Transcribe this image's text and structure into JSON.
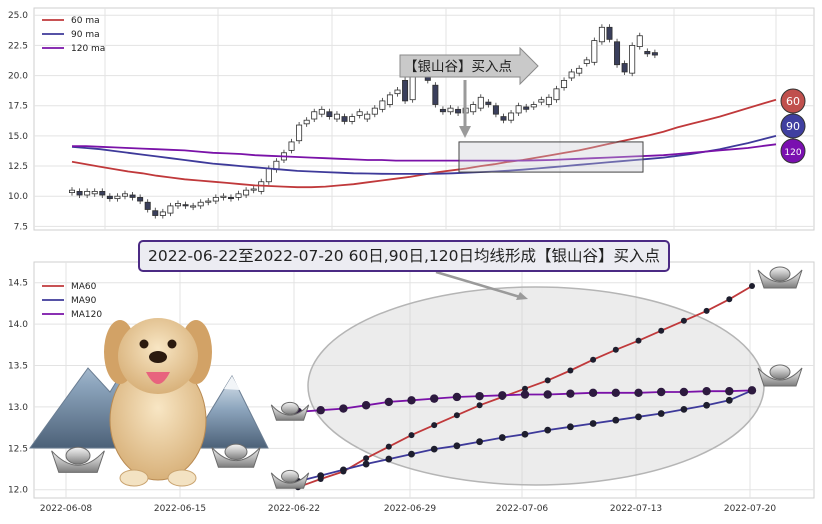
{
  "title": "2022-06-22至2022-07-20 60日,90日,120日均线形成【银山谷】买入点",
  "colors": {
    "ma60": "#c0393b",
    "ma90": "#3e3a9a",
    "ma120": "#7a12a8",
    "candle_up_fill": "#ffffff",
    "candle_down_fill": "#3a3f5c",
    "badge60": "#c0504d",
    "badge90": "#3f3fa0",
    "badge120": "#7a10b0"
  },
  "top_panel": {
    "legend": [
      "60 ma",
      "90 ma",
      "120 ma"
    ],
    "arrow_label": "【银山谷】买入点",
    "badges": [
      "60",
      "90",
      "120"
    ],
    "yticks": [
      "7.5",
      "10.0",
      "12.5",
      "15.0",
      "17.5",
      "20.0",
      "22.5",
      "25.0"
    ]
  },
  "bottom_panel": {
    "legend": [
      "MA60",
      "MA90",
      "MA120"
    ],
    "xticks": [
      "2022-06-08",
      "2022-06-15",
      "2022-06-22",
      "2022-06-29",
      "2022-07-06",
      "2022-07-13",
      "2022-07-20"
    ],
    "yticks": [
      "12.0",
      "12.5",
      "13.0",
      "13.5",
      "14.0",
      "14.5"
    ]
  },
  "chart_data": [
    {
      "type": "candlestick",
      "ylim": [
        7.2,
        25.6
      ],
      "series_ma": [
        {
          "name": "60 ma",
          "values": [
            12.85,
            12.65,
            12.45,
            12.25,
            12.05,
            11.9,
            11.7,
            11.55,
            11.4,
            11.3,
            11.2,
            11.1,
            11.0,
            10.9,
            10.85,
            10.8,
            10.75,
            10.75,
            10.8,
            10.9,
            11.0,
            11.15,
            11.3,
            11.45,
            11.6,
            11.8,
            12.0,
            12.15,
            12.3,
            12.5,
            12.65,
            12.85,
            13.0,
            13.2,
            13.4,
            13.6,
            13.8,
            14.05,
            14.3,
            14.55,
            14.8,
            15.05,
            15.35,
            15.7,
            16.0,
            16.3,
            16.6,
            16.95,
            17.3,
            17.65,
            18.0
          ]
        },
        {
          "name": "90 ma",
          "values": [
            14.1,
            14.0,
            13.9,
            13.75,
            13.6,
            13.45,
            13.3,
            13.15,
            13.0,
            12.85,
            12.7,
            12.6,
            12.5,
            12.4,
            12.3,
            12.2,
            12.1,
            12.05,
            12.0,
            11.95,
            11.9,
            11.88,
            11.86,
            11.85,
            11.85,
            11.85,
            11.87,
            11.9,
            11.95,
            12.0,
            12.05,
            12.12,
            12.2,
            12.3,
            12.4,
            12.5,
            12.6,
            12.7,
            12.8,
            12.9,
            13.0,
            13.1,
            13.2,
            13.35,
            13.5,
            13.7,
            13.9,
            14.15,
            14.4,
            14.7,
            15.0
          ]
        },
        {
          "name": "120 ma",
          "values": [
            14.15,
            14.15,
            14.1,
            14.05,
            14.0,
            13.95,
            13.9,
            13.85,
            13.8,
            13.7,
            13.6,
            13.55,
            13.5,
            13.4,
            13.35,
            13.3,
            13.25,
            13.2,
            13.15,
            13.1,
            13.05,
            13.0,
            13.0,
            12.95,
            12.95,
            12.95,
            12.95,
            12.95,
            12.95,
            12.95,
            12.95,
            12.95,
            12.95,
            12.98,
            13.0,
            13.05,
            13.1,
            13.15,
            13.2,
            13.25,
            13.3,
            13.35,
            13.4,
            13.5,
            13.6,
            13.7,
            13.8,
            13.9,
            14.0,
            14.15,
            14.3
          ]
        }
      ],
      "candles": [
        {
          "o": 10.3,
          "c": 10.5
        },
        {
          "o": 10.4,
          "c": 10.1
        },
        {
          "o": 10.1,
          "c": 10.4
        },
        {
          "o": 10.2,
          "c": 10.4
        },
        {
          "o": 10.4,
          "c": 10.1
        },
        {
          "o": 10.0,
          "c": 9.8
        },
        {
          "o": 9.8,
          "c": 10.0
        },
        {
          "o": 10.0,
          "c": 10.2
        },
        {
          "o": 10.1,
          "c": 9.9
        },
        {
          "o": 9.9,
          "c": 9.6
        },
        {
          "o": 9.5,
          "c": 8.9
        },
        {
          "o": 8.8,
          "c": 8.4
        },
        {
          "o": 8.4,
          "c": 8.7
        },
        {
          "o": 8.6,
          "c": 9.2
        },
        {
          "o": 9.2,
          "c": 9.4
        },
        {
          "o": 9.3,
          "c": 9.2
        },
        {
          "o": 9.1,
          "c": 9.2
        },
        {
          "o": 9.2,
          "c": 9.5
        },
        {
          "o": 9.5,
          "c": 9.6
        },
        {
          "o": 9.6,
          "c": 9.9
        },
        {
          "o": 9.9,
          "c": 10.0
        },
        {
          "o": 9.9,
          "c": 9.8
        },
        {
          "o": 9.9,
          "c": 10.2
        },
        {
          "o": 10.1,
          "c": 10.5
        },
        {
          "o": 10.5,
          "c": 10.6
        },
        {
          "o": 10.4,
          "c": 11.2
        },
        {
          "o": 11.2,
          "c": 12.3
        },
        {
          "o": 12.2,
          "c": 12.9
        },
        {
          "o": 13.0,
          "c": 13.6
        },
        {
          "o": 13.8,
          "c": 14.5
        },
        {
          "o": 14.6,
          "c": 15.9
        },
        {
          "o": 16.0,
          "c": 16.3
        },
        {
          "o": 16.4,
          "c": 17.0
        },
        {
          "o": 16.8,
          "c": 17.2
        },
        {
          "o": 17.0,
          "c": 16.6
        },
        {
          "o": 16.4,
          "c": 16.8
        },
        {
          "o": 16.6,
          "c": 16.2
        },
        {
          "o": 16.2,
          "c": 16.6
        },
        {
          "o": 16.7,
          "c": 17.0
        },
        {
          "o": 16.4,
          "c": 16.8
        },
        {
          "o": 16.8,
          "c": 17.3
        },
        {
          "o": 17.2,
          "c": 17.9
        }
      ],
      "candles2": [
        {
          "o": 17.6,
          "c": 18.4
        },
        {
          "o": 18.5,
          "c": 18.8
        },
        {
          "o": 19.6,
          "c": 17.9
        },
        {
          "o": 18.0,
          "c": 19.9
        },
        {
          "o": 20.2,
          "c": 20.5
        },
        {
          "o": 20.2,
          "c": 19.6
        },
        {
          "o": 19.2,
          "c": 17.6
        },
        {
          "o": 17.2,
          "c": 17.0
        },
        {
          "o": 17.0,
          "c": 17.3
        },
        {
          "o": 17.2,
          "c": 16.9
        },
        {
          "o": 16.9,
          "c": 17.3
        },
        {
          "o": 17.0,
          "c": 17.6
        },
        {
          "o": 17.3,
          "c": 18.2
        },
        {
          "o": 17.8,
          "c": 17.6
        },
        {
          "o": 17.5,
          "c": 16.8
        },
        {
          "o": 16.6,
          "c": 16.3
        },
        {
          "o": 16.3,
          "c": 16.9
        },
        {
          "o": 16.9,
          "c": 17.5
        },
        {
          "o": 17.4,
          "c": 17.2
        },
        {
          "o": 17.4,
          "c": 17.6
        },
        {
          "o": 17.8,
          "c": 18.0
        },
        {
          "o": 17.6,
          "c": 18.2
        },
        {
          "o": 18.0,
          "c": 18.9
        },
        {
          "o": 19.0,
          "c": 19.6
        },
        {
          "o": 19.8,
          "c": 20.3
        },
        {
          "o": 20.2,
          "c": 20.6
        },
        {
          "o": 21.0,
          "c": 21.3
        },
        {
          "o": 21.1,
          "c": 22.9
        },
        {
          "o": 22.8,
          "c": 24.0
        },
        {
          "o": 24.0,
          "c": 23.0
        },
        {
          "o": 22.8,
          "c": 20.9
        },
        {
          "o": 21.0,
          "c": 20.3
        },
        {
          "o": 20.2,
          "c": 22.5
        },
        {
          "o": 22.4,
          "c": 23.3
        },
        {
          "o": 22.0,
          "c": 21.8
        },
        {
          "o": 21.9,
          "c": 21.7
        }
      ]
    },
    {
      "type": "line",
      "x": [
        "2022-06-22",
        "2022-06-23",
        "2022-06-24",
        "2022-06-27",
        "2022-06-28",
        "2022-06-29",
        "2022-06-30",
        "2022-07-01",
        "2022-07-04",
        "2022-07-05",
        "2022-07-06",
        "2022-07-07",
        "2022-07-08",
        "2022-07-11",
        "2022-07-12",
        "2022-07-13",
        "2022-07-14",
        "2022-07-15",
        "2022-07-18",
        "2022-07-19",
        "2022-07-20"
      ],
      "ylim": [
        11.9,
        14.75
      ],
      "series": [
        {
          "name": "MA60",
          "values": [
            12.03,
            12.13,
            12.22,
            12.38,
            12.52,
            12.66,
            12.78,
            12.9,
            13.02,
            13.12,
            13.22,
            13.32,
            13.44,
            13.57,
            13.69,
            13.8,
            13.92,
            14.04,
            14.16,
            14.3,
            14.46
          ]
        },
        {
          "name": "MA90",
          "values": [
            12.1,
            12.17,
            12.24,
            12.31,
            12.37,
            12.43,
            12.49,
            12.53,
            12.58,
            12.63,
            12.67,
            12.72,
            12.76,
            12.8,
            12.84,
            12.88,
            12.92,
            12.97,
            13.02,
            13.08,
            13.2
          ]
        },
        {
          "name": "MA120",
          "values": [
            12.94,
            12.96,
            12.98,
            13.02,
            13.06,
            13.08,
            13.1,
            13.12,
            13.13,
            13.14,
            13.15,
            13.15,
            13.16,
            13.17,
            13.17,
            13.17,
            13.18,
            13.18,
            13.19,
            13.19,
            13.2
          ]
        }
      ]
    }
  ]
}
